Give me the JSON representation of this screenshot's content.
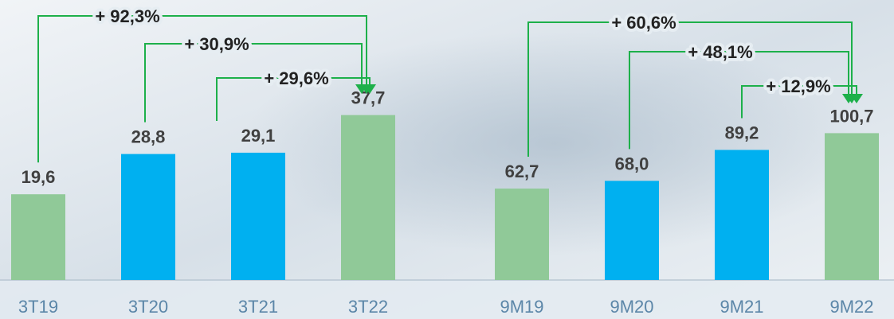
{
  "chart_data": [
    {
      "type": "bar",
      "categories": [
        "3T19",
        "3T20",
        "3T21",
        "3T22"
      ],
      "values": [
        19.6,
        28.8,
        29.1,
        37.7
      ],
      "value_labels": [
        "19,6",
        "28,8",
        "29,1",
        "37,7"
      ],
      "colors": [
        "#90c998",
        "#00b0f0",
        "#00b0f0",
        "#90c998"
      ],
      "ylim": [
        0,
        60
      ],
      "annotations": [
        "+ 92,3%",
        "+ 30,9%",
        "+ 29,6%"
      ]
    },
    {
      "type": "bar",
      "categories": [
        "9M19",
        "9M20",
        "9M21",
        "9M22"
      ],
      "values": [
        62.7,
        68.0,
        89.2,
        100.7
      ],
      "value_labels": [
        "62,7",
        "68,0",
        "89,2",
        "100,7"
      ],
      "colors": [
        "#90c998",
        "#00b0f0",
        "#00b0f0",
        "#90c998"
      ],
      "ylim": [
        0,
        180
      ],
      "annotations": [
        "+ 60,6%",
        "+ 48,1%",
        "+ 12,9%"
      ]
    }
  ]
}
